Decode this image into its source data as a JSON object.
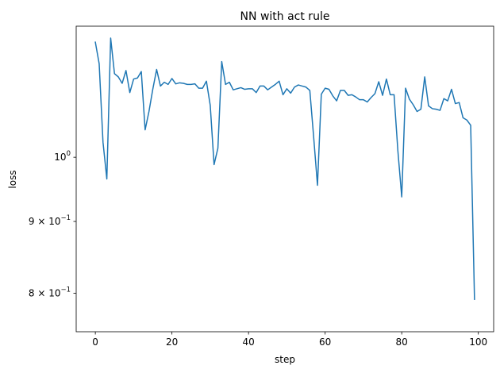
{
  "chart_data": {
    "type": "line",
    "title": "NN with act rule",
    "xlabel": "step",
    "ylabel": "loss",
    "yscale": "log",
    "xlim": [
      -5,
      104
    ],
    "ylim": [
      0.751,
      1.24
    ],
    "grid": false,
    "legend": "none",
    "x_ticks": [
      0,
      20,
      40,
      60,
      80,
      100
    ],
    "x_tick_labels": [
      "0",
      "20",
      "40",
      "60",
      "80",
      "100"
    ],
    "y_ticks": [
      0.8,
      0.9,
      1.0
    ],
    "y_tick_labels": [
      {
        "mantissa": "8",
        "base": "10",
        "exp": "−1"
      },
      {
        "mantissa": "9",
        "base": "10",
        "exp": "−1"
      },
      {
        "mantissa": "",
        "base": "10",
        "exp": "0"
      }
    ],
    "series": [
      {
        "color": "#1f77b4",
        "x": [
          0,
          1,
          2,
          3,
          4,
          5,
          6,
          7,
          8,
          9,
          10,
          11,
          12,
          13,
          14,
          15,
          16,
          17,
          18,
          19,
          20,
          21,
          22,
          23,
          24,
          25,
          26,
          27,
          28,
          29,
          30,
          31,
          32,
          33,
          34,
          35,
          36,
          37,
          38,
          39,
          40,
          41,
          42,
          43,
          44,
          45,
          46,
          47,
          48,
          49,
          50,
          51,
          52,
          53,
          54,
          55,
          56,
          57,
          58,
          59,
          60,
          61,
          62,
          63,
          64,
          65,
          66,
          67,
          68,
          69,
          70,
          71,
          72,
          73,
          74,
          75,
          76,
          77,
          78,
          79,
          80,
          81,
          82,
          83,
          84,
          85,
          86,
          87,
          88,
          89,
          90,
          91,
          92,
          93,
          94,
          95,
          96,
          97,
          98,
          99
        ],
        "y": [
          1.208,
          1.166,
          1.025,
          0.965,
          1.216,
          1.147,
          1.141,
          1.129,
          1.153,
          1.112,
          1.137,
          1.139,
          1.151,
          1.046,
          1.078,
          1.118,
          1.155,
          1.124,
          1.131,
          1.127,
          1.138,
          1.128,
          1.13,
          1.129,
          1.127,
          1.127,
          1.128,
          1.12,
          1.12,
          1.133,
          1.089,
          0.988,
          1.015,
          1.17,
          1.127,
          1.131,
          1.117,
          1.119,
          1.121,
          1.118,
          1.119,
          1.119,
          1.112,
          1.124,
          1.124,
          1.117,
          1.122,
          1.127,
          1.133,
          1.108,
          1.119,
          1.111,
          1.122,
          1.126,
          1.124,
          1.122,
          1.116,
          1.034,
          0.955,
          1.109,
          1.12,
          1.118,
          1.106,
          1.097,
          1.116,
          1.116,
          1.107,
          1.108,
          1.104,
          1.099,
          1.099,
          1.095,
          1.103,
          1.11,
          1.132,
          1.107,
          1.137,
          1.108,
          1.108,
          1.01,
          0.937,
          1.12,
          1.1,
          1.09,
          1.078,
          1.082,
          1.141,
          1.088,
          1.083,
          1.082,
          1.08,
          1.101,
          1.097,
          1.118,
          1.092,
          1.094,
          1.067,
          1.063,
          1.054,
          0.792
        ]
      }
    ]
  }
}
